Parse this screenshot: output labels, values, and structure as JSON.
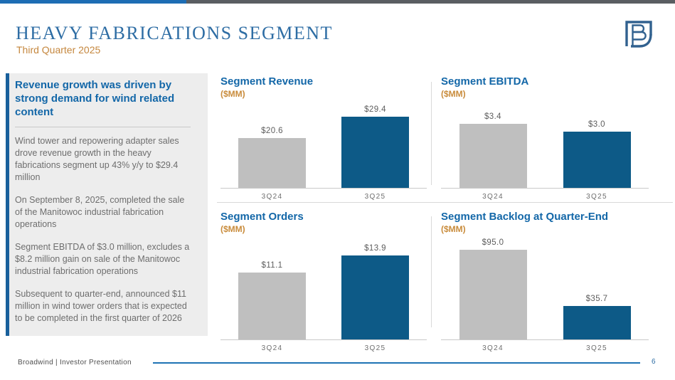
{
  "slide": {
    "title": "HEAVY FABRICATIONS SEGMENT",
    "subtitle": "Third Quarter 2025",
    "footer_text": "Broadwind | Investor Presentation",
    "page_number": "6"
  },
  "sidebar": {
    "headline": "Revenue growth was driven by strong demand for wind related content",
    "paragraphs": [
      "Wind tower and repowering adapter sales drove revenue growth in the heavy fabrications segment up 43% y/y to $29.4 million",
      "On September 8, 2025, completed the sale of the Manitowoc industrial fabrication operations",
      "Segment EBITDA of $3.0 million, excludes a $8.2 million gain on sale of the Manitowoc industrial fabrication operations",
      "Subsequent to quarter-end, announced $11 million in wind tower orders that is expected to be completed in the first quarter of 2026"
    ]
  },
  "chart_data": [
    {
      "type": "bar",
      "title": "Segment Revenue",
      "unit_label": "($MM)",
      "categories": [
        "3Q24",
        "3Q25"
      ],
      "values": [
        20.6,
        29.4
      ],
      "value_labels": [
        "$20.6",
        "$29.4"
      ],
      "bar_colors": [
        "#bfbfbf",
        "#0d5a87"
      ],
      "legend": "none",
      "grid": false
    },
    {
      "type": "bar",
      "title": "Segment EBITDA",
      "unit_label": "($MM)",
      "categories": [
        "3Q24",
        "3Q25"
      ],
      "values": [
        3.4,
        3.0
      ],
      "value_labels": [
        "$3.4",
        "$3.0"
      ],
      "bar_colors": [
        "#bfbfbf",
        "#0d5a87"
      ],
      "legend": "none",
      "grid": false
    },
    {
      "type": "bar",
      "title": "Segment Orders",
      "unit_label": "($MM)",
      "categories": [
        "3Q24",
        "3Q25"
      ],
      "values": [
        11.1,
        13.9
      ],
      "value_labels": [
        "$11.1",
        "$13.9"
      ],
      "bar_colors": [
        "#bfbfbf",
        "#0d5a87"
      ],
      "legend": "none",
      "grid": false
    },
    {
      "type": "bar",
      "title": "Segment Backlog at Quarter-End",
      "unit_label": "($MM)",
      "categories": [
        "3Q24",
        "3Q25"
      ],
      "values": [
        95.0,
        35.7
      ],
      "value_labels": [
        "$95.0",
        "$35.7"
      ],
      "bar_colors": [
        "#bfbfbf",
        "#0d5a87"
      ],
      "legend": "none",
      "grid": false
    }
  ],
  "colors": {
    "bar_gray": "#bfbfbf",
    "bar_blue": "#0d5a87",
    "title_serif_blue": "#2e6da4",
    "heading_blue": "#1367a8",
    "accent_orange": "#c98c3c",
    "topbar_blue": "#1d6db4",
    "topbar_gray": "#5a5e62",
    "footer_line_blue": "#1e73b4",
    "sidebar_bg": "#ededed"
  },
  "icons": {
    "logo": "broadwind-b-square-logo"
  }
}
